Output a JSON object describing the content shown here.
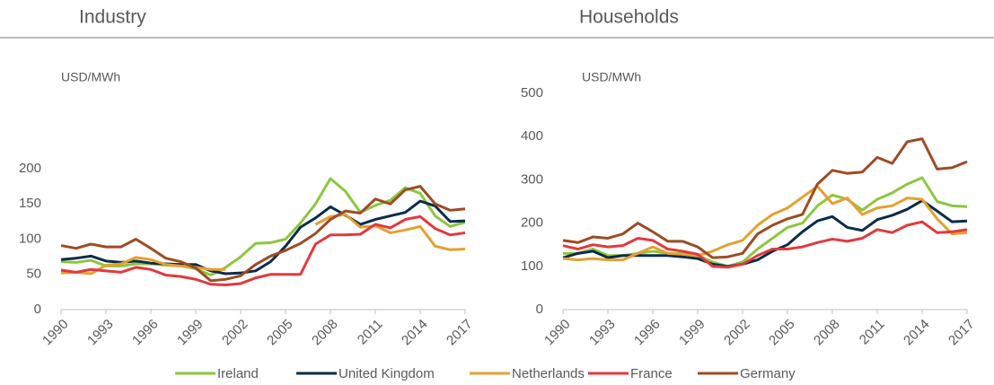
{
  "chart_data": [
    {
      "type": "line",
      "title": "Industry",
      "ylabel": "USD/MWh",
      "x": [
        1990,
        1991,
        1992,
        1993,
        1994,
        1995,
        1996,
        1997,
        1998,
        1999,
        2000,
        2001,
        2002,
        2003,
        2004,
        2005,
        2006,
        2007,
        2008,
        2009,
        2010,
        2011,
        2012,
        2013,
        2014,
        2015,
        2016,
        2017
      ],
      "xlim": [
        1990,
        2017
      ],
      "xticks": [
        1990,
        1993,
        1996,
        1999,
        2002,
        2005,
        2008,
        2011,
        2014,
        2017
      ],
      "ylim": [
        0,
        200
      ],
      "yticks": [
        0,
        50,
        100,
        150,
        200
      ],
      "series": [
        {
          "name": "Ireland",
          "color": "#8dc63f",
          "values": [
            68,
            67,
            70,
            62,
            62,
            65,
            65,
            63,
            62,
            58,
            49,
            60,
            75,
            94,
            95,
            100,
            123,
            150,
            186,
            168,
            138,
            148,
            155,
            173,
            165,
            133,
            118,
            124
          ]
        },
        {
          "name": "United Kingdom",
          "color": "#0b2c4a",
          "values": [
            71,
            73,
            76,
            69,
            67,
            69,
            66,
            65,
            64,
            64,
            55,
            51,
            52,
            55,
            68,
            90,
            117,
            130,
            146,
            134,
            121,
            128,
            133,
            138,
            154,
            147,
            125,
            126
          ]
        },
        {
          "name": "Netherlands",
          "color": "#e5a030",
          "values": [
            52,
            53,
            51,
            63,
            65,
            74,
            71,
            64,
            62,
            60,
            57,
            57,
            null,
            null,
            null,
            null,
            null,
            121,
            132,
            135,
            117,
            119,
            109,
            113,
            118,
            90,
            85,
            86
          ]
        },
        {
          "name": "France",
          "color": "#e03a3e",
          "values": [
            56,
            53,
            57,
            55,
            53,
            60,
            57,
            49,
            47,
            43,
            36,
            35,
            37,
            45,
            50,
            50,
            50,
            93,
            106,
            106,
            107,
            121,
            116,
            128,
            132,
            115,
            106,
            109
          ]
        },
        {
          "name": "Germany",
          "color": "#9e4b25",
          "values": [
            91,
            87,
            93,
            89,
            89,
            100,
            87,
            73,
            68,
            59,
            41,
            43,
            48,
            64,
            76,
            84,
            94,
            108,
            128,
            140,
            137,
            157,
            150,
            170,
            175,
            150,
            141,
            143
          ]
        }
      ]
    },
    {
      "type": "line",
      "title": "Households",
      "ylabel": "USD/MWh",
      "x": [
        1990,
        1991,
        1992,
        1993,
        1994,
        1995,
        1996,
        1997,
        1998,
        1999,
        2000,
        2001,
        2002,
        2003,
        2004,
        2005,
        2006,
        2007,
        2008,
        2009,
        2010,
        2011,
        2012,
        2013,
        2014,
        2015,
        2016,
        2017
      ],
      "xlim": [
        1990,
        2017
      ],
      "xticks": [
        1990,
        1993,
        1996,
        1999,
        2002,
        2005,
        2008,
        2011,
        2014,
        2017
      ],
      "ylim": [
        0,
        500
      ],
      "yticks": [
        0,
        100,
        200,
        300,
        400,
        500
      ],
      "series": [
        {
          "name": "Ireland",
          "color": "#8dc63f",
          "values": [
            130,
            130,
            140,
            125,
            125,
            130,
            135,
            130,
            130,
            125,
            110,
            100,
            110,
            140,
            165,
            190,
            200,
            240,
            265,
            255,
            230,
            255,
            270,
            290,
            305,
            250,
            240,
            238
          ]
        },
        {
          "name": "United Kingdom",
          "color": "#0b2c4a",
          "values": [
            120,
            130,
            135,
            120,
            125,
            125,
            125,
            125,
            122,
            118,
            105,
            100,
            105,
            115,
            135,
            150,
            180,
            205,
            215,
            190,
            183,
            208,
            218,
            232,
            252,
            228,
            203,
            205
          ]
        },
        {
          "name": "Netherlands",
          "color": "#e5a030",
          "values": [
            118,
            115,
            118,
            115,
            115,
            130,
            145,
            130,
            128,
            125,
            135,
            150,
            160,
            195,
            220,
            235,
            260,
            285,
            245,
            258,
            220,
            235,
            240,
            258,
            255,
            210,
            175,
            178
          ]
        },
        {
          "name": "France",
          "color": "#e03a3e",
          "values": [
            148,
            140,
            150,
            145,
            148,
            165,
            160,
            140,
            135,
            128,
            100,
            98,
            105,
            125,
            140,
            140,
            145,
            155,
            163,
            158,
            165,
            185,
            178,
            195,
            203,
            178,
            180,
            185
          ]
        },
        {
          "name": "Germany",
          "color": "#9e4b25",
          "values": [
            160,
            155,
            168,
            165,
            175,
            200,
            180,
            158,
            158,
            145,
            120,
            122,
            130,
            175,
            195,
            210,
            220,
            290,
            322,
            315,
            318,
            352,
            338,
            388,
            395,
            325,
            328,
            342
          ]
        }
      ]
    }
  ]
}
